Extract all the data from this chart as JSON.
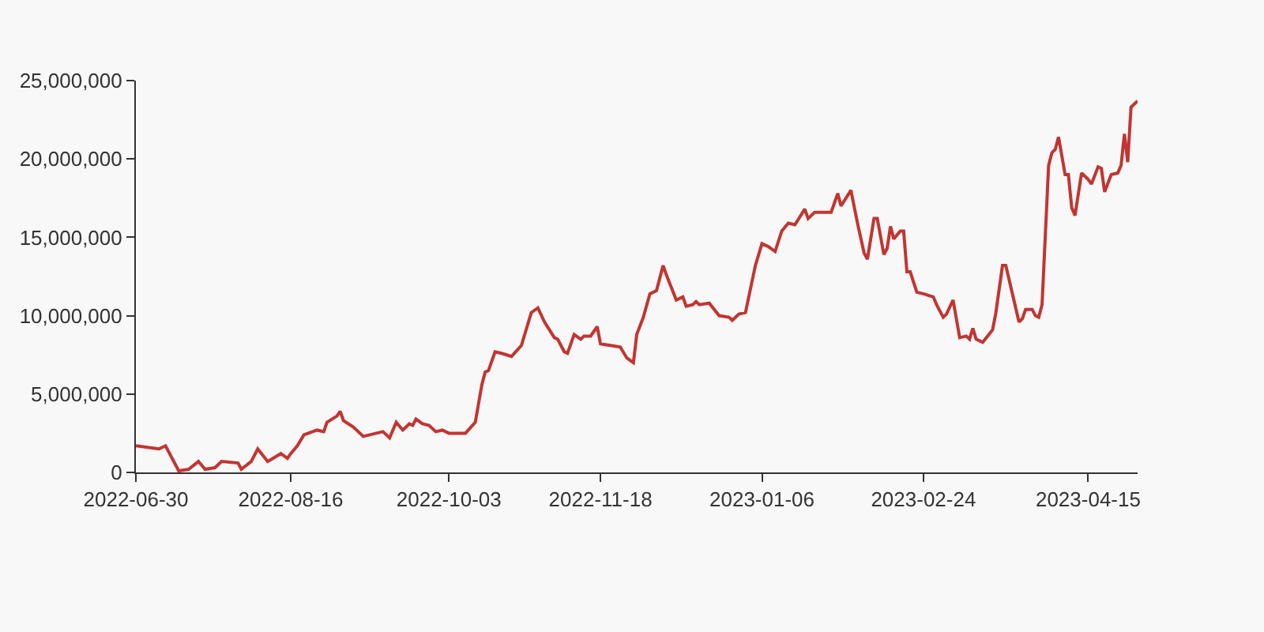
{
  "chart_data": {
    "type": "line",
    "color": "#c23531",
    "grid": false,
    "x": [
      "2022-06-30",
      "2022-07-07",
      "2022-07-09",
      "2022-07-13",
      "2022-07-16",
      "2022-07-19",
      "2022-07-21",
      "2022-07-24",
      "2022-07-26",
      "2022-07-31",
      "2022-08-01",
      "2022-08-04",
      "2022-08-06",
      "2022-08-09",
      "2022-08-13",
      "2022-08-15",
      "2022-08-16",
      "2022-08-18",
      "2022-08-20",
      "2022-08-24",
      "2022-08-26",
      "2022-08-27",
      "2022-08-30",
      "2022-08-31",
      "2022-09-01",
      "2022-09-04",
      "2022-09-07",
      "2022-09-13",
      "2022-09-15",
      "2022-09-17",
      "2022-09-19",
      "2022-09-21",
      "2022-09-22",
      "2022-09-23",
      "2022-09-25",
      "2022-09-27",
      "2022-09-29",
      "2022-10-01",
      "2022-10-03",
      "2022-10-08",
      "2022-10-11",
      "2022-10-13",
      "2022-10-14",
      "2022-10-15",
      "2022-10-17",
      "2022-10-19",
      "2022-10-22",
      "2022-10-25",
      "2022-10-28",
      "2022-10-30",
      "2022-11-01",
      "2022-11-04",
      "2022-11-05",
      "2022-11-07",
      "2022-11-08",
      "2022-11-10",
      "2022-11-12",
      "2022-11-13",
      "2022-11-15",
      "2022-11-17",
      "2022-11-18",
      "2022-11-21",
      "2022-11-24",
      "2022-11-26",
      "2022-11-28",
      "2022-11-29",
      "2022-12-01",
      "2022-12-03",
      "2022-12-05",
      "2022-12-07",
      "2022-12-08",
      "2022-12-11",
      "2022-12-13",
      "2022-12-14",
      "2022-12-16",
      "2022-12-17",
      "2022-12-18",
      "2022-12-21",
      "2022-12-24",
      "2022-12-27",
      "2022-12-28",
      "2022-12-30",
      "2023-01-01",
      "2023-01-04",
      "2023-01-06",
      "2023-01-08",
      "2023-01-10",
      "2023-01-12",
      "2023-01-14",
      "2023-01-16",
      "2023-01-19",
      "2023-01-20",
      "2023-01-22",
      "2023-01-27",
      "2023-01-29",
      "2023-01-30",
      "2023-02-02",
      "2023-02-04",
      "2023-02-06",
      "2023-02-07",
      "2023-02-09",
      "2023-02-10",
      "2023-02-12",
      "2023-02-13",
      "2023-02-14",
      "2023-02-15",
      "2023-02-17",
      "2023-02-18",
      "2023-02-19",
      "2023-02-20",
      "2023-02-22",
      "2023-02-24",
      "2023-02-27",
      "2023-02-28",
      "2023-03-02",
      "2023-03-03",
      "2023-03-05",
      "2023-03-07",
      "2023-03-09",
      "2023-03-10",
      "2023-03-11",
      "2023-03-12",
      "2023-03-14",
      "2023-03-17",
      "2023-03-18",
      "2023-03-20",
      "2023-03-21",
      "2023-03-23",
      "2023-03-25",
      "2023-03-26",
      "2023-03-27",
      "2023-03-29",
      "2023-03-30",
      "2023-03-31",
      "2023-04-01",
      "2023-04-03",
      "2023-04-04",
      "2023-04-05",
      "2023-04-06",
      "2023-04-08",
      "2023-04-09",
      "2023-04-10",
      "2023-04-11",
      "2023-04-13",
      "2023-04-15",
      "2023-04-16",
      "2023-04-18",
      "2023-04-19",
      "2023-04-20",
      "2023-04-22",
      "2023-04-24",
      "2023-04-25",
      "2023-04-26",
      "2023-04-27",
      "2023-04-28",
      "2023-04-30"
    ],
    "values": [
      1700000,
      1500000,
      1700000,
      100000,
      200000,
      700000,
      200000,
      300000,
      700000,
      600000,
      200000,
      700000,
      1500000,
      700000,
      1200000,
      900000,
      1200000,
      1700000,
      2400000,
      2700000,
      2600000,
      3200000,
      3600000,
      3900000,
      3300000,
      2900000,
      2300000,
      2600000,
      2200000,
      3200000,
      2700000,
      3100000,
      3000000,
      3400000,
      3100000,
      3000000,
      2600000,
      2700000,
      2500000,
      2500000,
      3200000,
      5600000,
      6400000,
      6500000,
      7700000,
      7600000,
      7400000,
      8100000,
      10200000,
      10500000,
      9600000,
      8600000,
      8500000,
      7700000,
      7600000,
      8800000,
      8500000,
      8700000,
      8700000,
      9300000,
      8200000,
      8100000,
      8000000,
      7300000,
      7000000,
      8800000,
      9900000,
      11400000,
      11600000,
      13200000,
      12600000,
      11000000,
      11200000,
      10600000,
      10700000,
      10900000,
      10700000,
      10800000,
      10000000,
      9900000,
      9700000,
      10100000,
      10200000,
      13200000,
      14600000,
      14400000,
      14100000,
      15400000,
      15900000,
      15800000,
      16800000,
      16200000,
      16600000,
      16600000,
      17800000,
      17000000,
      18000000,
      15900000,
      14000000,
      13600000,
      16200000,
      16200000,
      13900000,
      14300000,
      15700000,
      14900000,
      15400000,
      15400000,
      12800000,
      12800000,
      11500000,
      11400000,
      11200000,
      10700000,
      9900000,
      10100000,
      11000000,
      8600000,
      8700000,
      8500000,
      9200000,
      8500000,
      8300000,
      9100000,
      10200000,
      13200000,
      13200000,
      11400000,
      9600000,
      9800000,
      10400000,
      10400000,
      10000000,
      9900000,
      10700000,
      19600000,
      20400000,
      20600000,
      21400000,
      19000000,
      19000000,
      16900000,
      16400000,
      19100000,
      18700000,
      18400000,
      19500000,
      19400000,
      17900000,
      19000000,
      19100000,
      19600000,
      21600000,
      19800000,
      23300000,
      23700000
    ],
    "xlim": [
      "2022-06-30",
      "2023-04-30"
    ],
    "xticks": [
      "2022-06-30",
      "2022-08-16",
      "2022-10-03",
      "2022-11-18",
      "2023-01-06",
      "2023-02-24",
      "2023-04-15"
    ],
    "ylim": [
      0,
      25000000
    ],
    "yticks": [
      0,
      {
        "value": 5000000,
        "label": "5,000,000"
      },
      {
        "value": 10000000,
        "label": "10,000,000"
      },
      {
        "value": 15000000,
        "label": "15,000,000"
      },
      {
        "value": 20000000,
        "label": "20,000,000"
      },
      {
        "value": 25000000,
        "label": "25,000,000"
      }
    ]
  }
}
